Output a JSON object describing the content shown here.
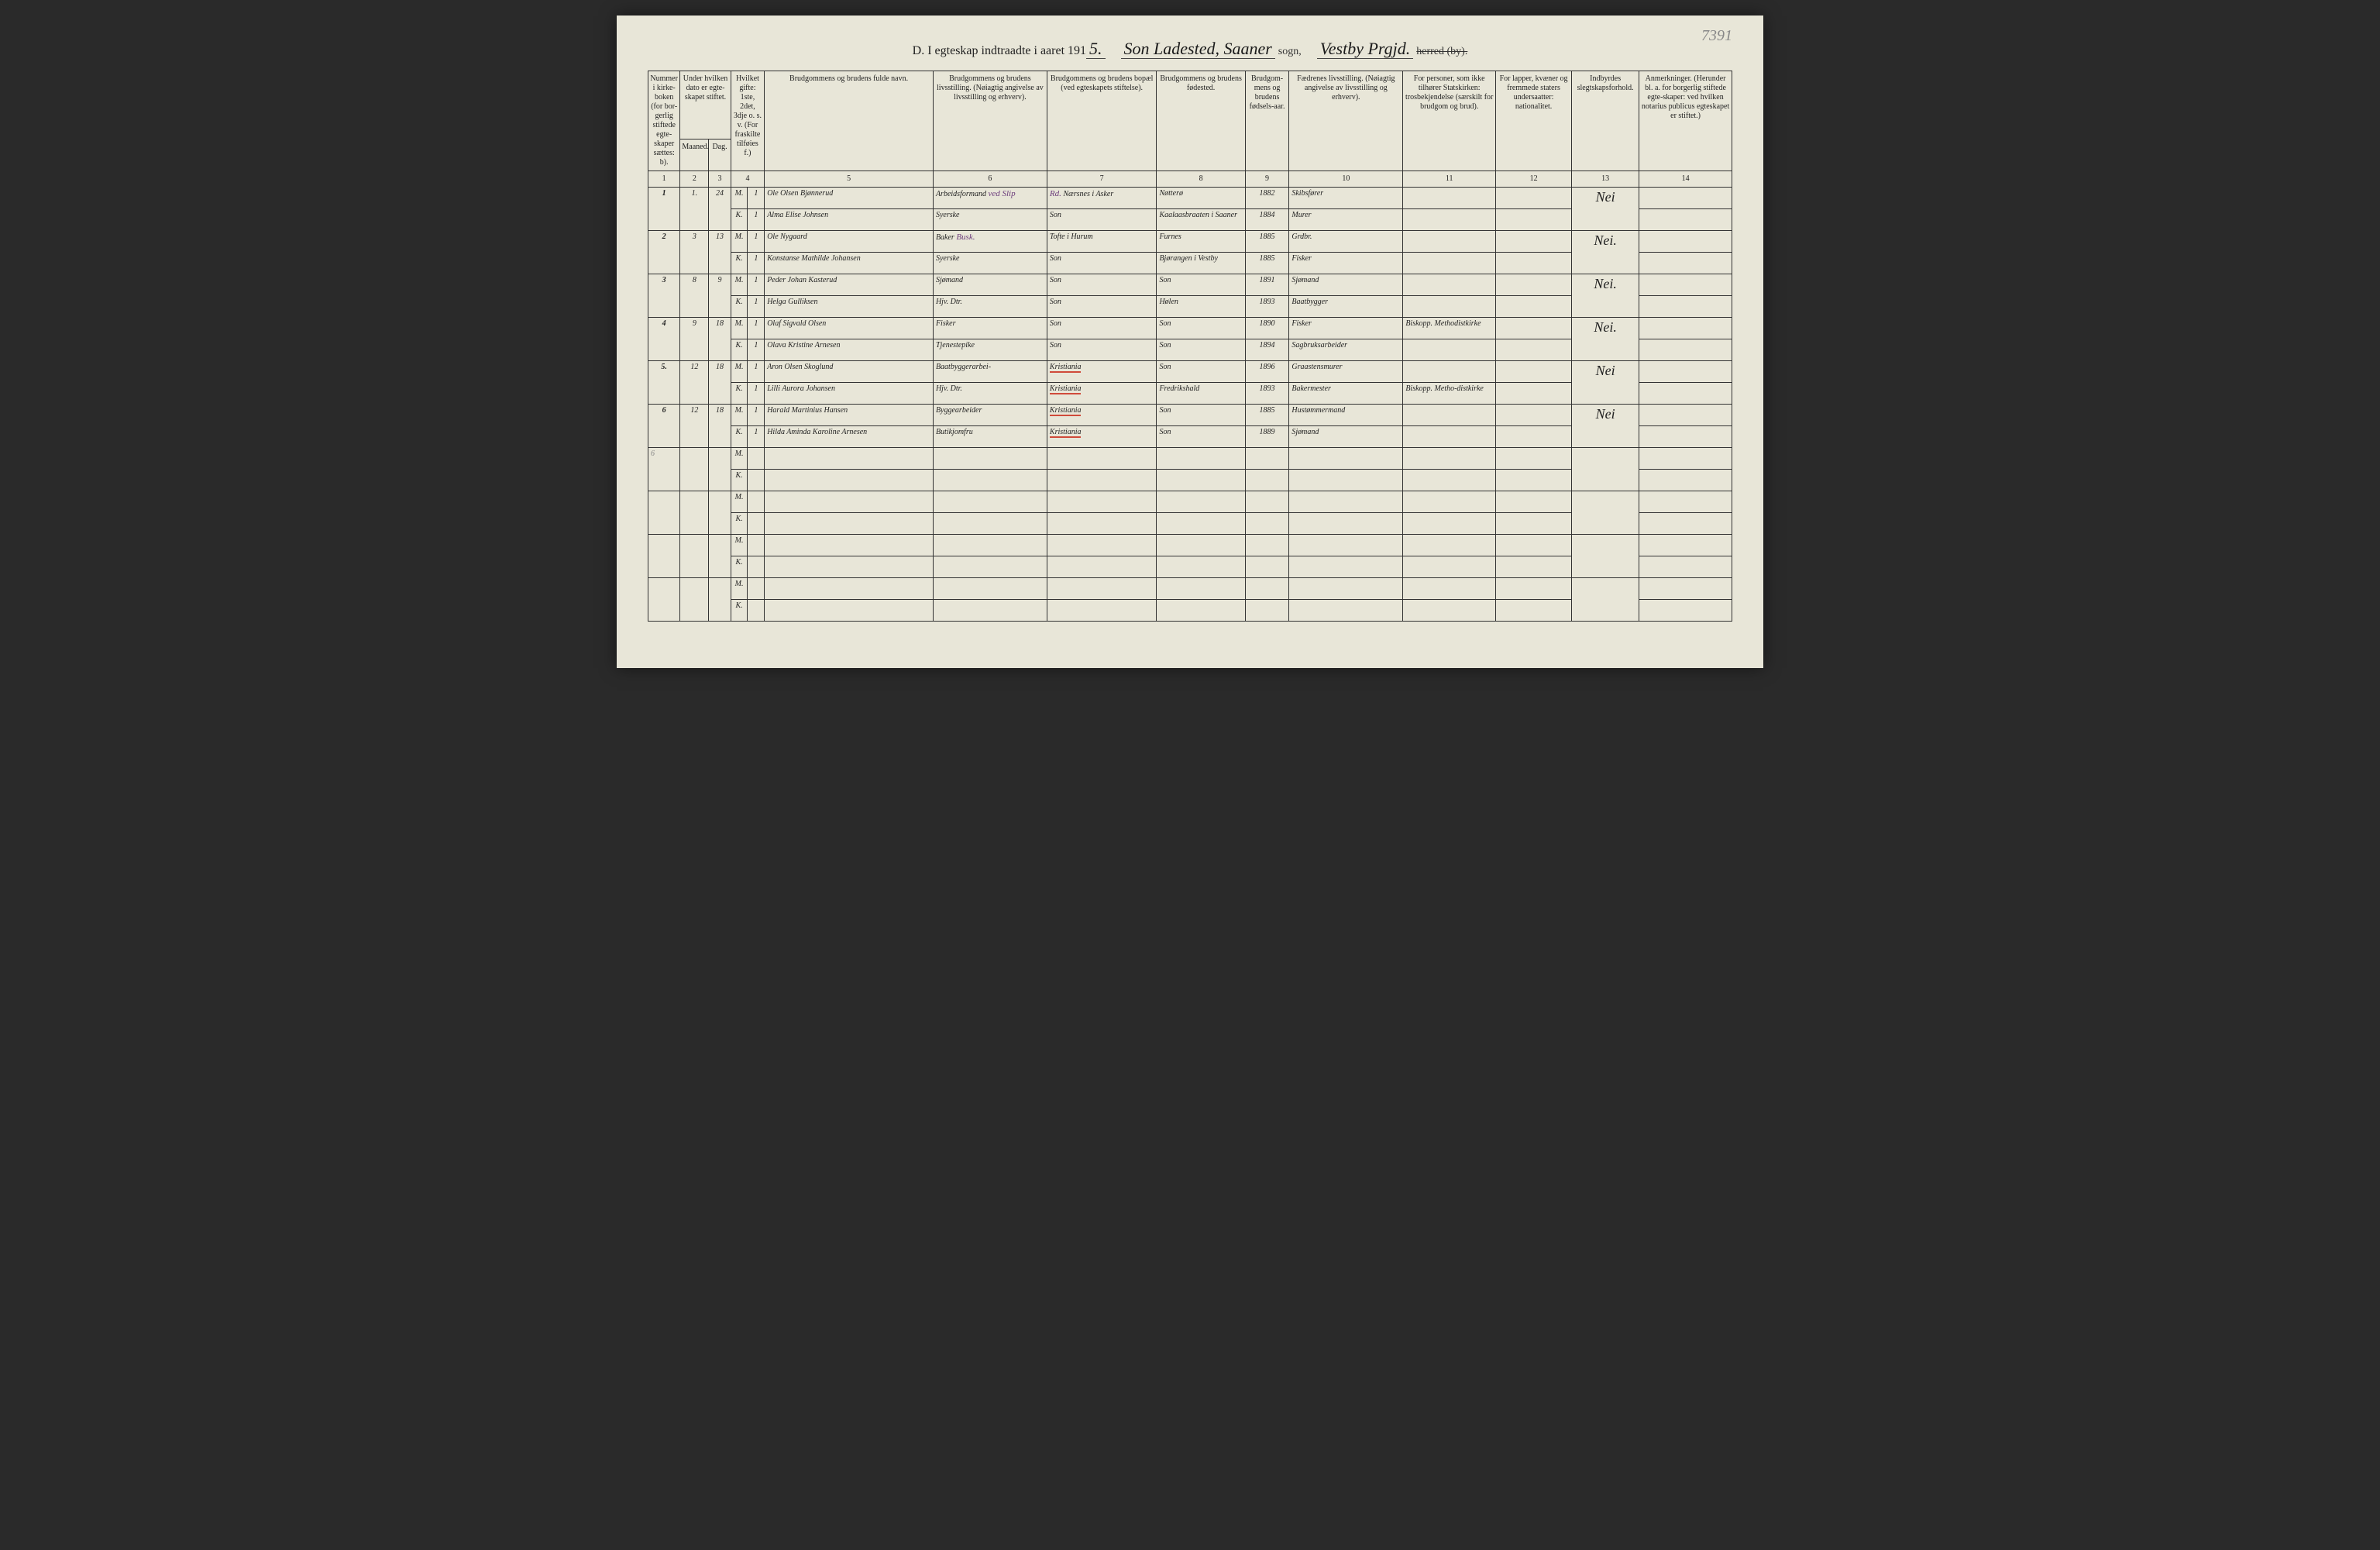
{
  "corner": "7391",
  "title": {
    "prefix": "D.  I egteskap indtraadte i aaret 191",
    "year_suffix": "5.",
    "place1": "Son Ladested, Saaner",
    "sogn": "sogn,",
    "place2": "Vestby Prgjd.",
    "herred": "herred (by)."
  },
  "headers": {
    "h1": "Nummer i kirke-boken (for bor-gerlig stiftede egte-skaper sættes: b).",
    "h2": "Under hvilken dato er egte-skapet stiftet.",
    "h2a": "Maaned.",
    "h2b": "Dag.",
    "h3": "Hvilket gifte: 1ste, 2det, 3dje o. s. v. (For fraskilte tilføies f.)",
    "h5": "Brudgommens og brudens fulde navn.",
    "h6": "Brudgommens og brudens livsstilling. (Nøiagtig angivelse av livsstilling og erhverv).",
    "h7": "Brudgommens og brudens bopæl (ved egteskapets stiftelse).",
    "h8": "Brudgommens og brudens fødested.",
    "h9": "Brudgom-mens og brudens fødsels-aar.",
    "h10": "Fædrenes livsstilling. (Nøiagtig angivelse av livsstilling og erhverv).",
    "h11": "For personer, som ikke tilhører Statskirken: trosbekjendelse (særskilt for brudgom og brud).",
    "h12": "For lapper, kvæner og fremmede staters undersaatter: nationalitet.",
    "h13": "Indbyrdes slegtskapsforhold.",
    "h14": "Anmerkninger. (Herunder bl. a. for borgerlig stiftede egte-skaper: ved hvilken notarius publicus egteskapet er stiftet.)"
  },
  "colnums": [
    "1",
    "2",
    "3",
    "4",
    "5",
    "6",
    "7",
    "8",
    "9",
    "10",
    "11",
    "12",
    "13",
    "14"
  ],
  "mk": {
    "m": "M.",
    "k": "K."
  },
  "rows": [
    {
      "n": "1",
      "mo": "1.",
      "day": "24",
      "m": {
        "g": "1",
        "name": "Ole Olsen Bjønnerud",
        "occ": "Arbeidsformand",
        "occNote": "ved Slip",
        "res": "Nærsnes i Asker",
        "resNote": "Rd.",
        "birth": "Nøtterø",
        "yr": "1882",
        "father": "Skibsfører",
        "c11": "",
        "c12": "",
        "c13": "Nei",
        "c14": ""
      },
      "k": {
        "g": "1",
        "name": "Alma Elise Johnsen",
        "occ": "Syerske",
        "res": "Son",
        "birth": "Kaalaasbraaten i Saaner",
        "yr": "1884",
        "father": "Murer",
        "c11": "",
        "c12": "",
        "c13": "",
        "c14": ""
      }
    },
    {
      "n": "2",
      "mo": "3",
      "day": "13",
      "m": {
        "g": "1",
        "name": "Ole Nygaard",
        "occ": "Baker",
        "occNote": "Busk.",
        "res": "Tofte i Hurum",
        "birth": "Furnes",
        "yr": "1885",
        "father": "Grdbr.",
        "c11": "",
        "c12": "",
        "c13": "Nei.",
        "c14": ""
      },
      "k": {
        "g": "1",
        "name": "Konstanse Mathilde Johansen",
        "occ": "Syerske",
        "res": "Son",
        "birth": "Bjørangen i Vestby",
        "yr": "1885",
        "father": "Fisker",
        "c11": "",
        "c12": "",
        "c13": "",
        "c14": ""
      }
    },
    {
      "n": "3",
      "mo": "8",
      "day": "9",
      "m": {
        "g": "1",
        "name": "Peder Johan Kasterud",
        "occ": "Sjømand",
        "res": "Son",
        "birth": "Son",
        "yr": "1891",
        "father": "Sjømand",
        "c11": "",
        "c12": "",
        "c13": "Nei.",
        "c14": ""
      },
      "k": {
        "g": "1",
        "name": "Helga Gulliksen",
        "occ": "Hjv. Dtr.",
        "res": "Son",
        "birth": "Hølen",
        "yr": "1893",
        "father": "Baatbygger",
        "c11": "",
        "c12": "",
        "c13": "",
        "c14": ""
      }
    },
    {
      "n": "4",
      "mo": "9",
      "day": "18",
      "m": {
        "g": "1",
        "name": "Olaf Sigvald Olsen",
        "occ": "Fisker",
        "res": "Son",
        "birth": "Son",
        "yr": "1890",
        "father": "Fisker",
        "c11": "Biskopp. Methodistkirke",
        "c12": "",
        "c13": "Nei.",
        "c14": ""
      },
      "k": {
        "g": "1",
        "name": "Olava Kristine Arnesen",
        "occ": "Tjenestepike",
        "res": "Son",
        "birth": "Son",
        "yr": "1894",
        "father": "Sagbruksarbeider",
        "c11": "",
        "c12": "",
        "c13": "",
        "c14": ""
      }
    },
    {
      "n": "5.",
      "mo": "12",
      "day": "18",
      "m": {
        "g": "1",
        "name": "Aron Olsen Skoglund",
        "occ": "Baatbyggerarbei-",
        "res": "Kristiania",
        "birth": "Son",
        "yr": "1896",
        "father": "Graastensmurer",
        "c11": "",
        "c12": "",
        "c13": "Nei",
        "c14": ""
      },
      "k": {
        "g": "1",
        "name": "Lilli Aurora Johansen",
        "occ": "Hjv. Dtr.",
        "res": "Kristiania",
        "birth": "Fredrikshald",
        "yr": "1893",
        "father": "Bakermester",
        "c11": "Biskopp. Metho-distkirke",
        "c12": "",
        "c13": "",
        "c14": ""
      }
    },
    {
      "n": "6",
      "mo": "12",
      "day": "18",
      "m": {
        "g": "1",
        "name": "Harald Martinius Hansen",
        "occ": "Byggearbeider",
        "res": "Kristiania",
        "birth": "Son",
        "yr": "1885",
        "father": "Hustømmermand",
        "c11": "",
        "c12": "",
        "c13": "Nei",
        "c14": ""
      },
      "k": {
        "g": "1",
        "name": "Hilda Aminda Karoline Arnesen",
        "occ": "Butikjomfru",
        "res": "Kristiania",
        "birth": "Son",
        "yr": "1889",
        "father": "Sjømand",
        "c11": "",
        "c12": "",
        "c13": "",
        "c14": ""
      }
    }
  ],
  "emptyMargin": "6"
}
